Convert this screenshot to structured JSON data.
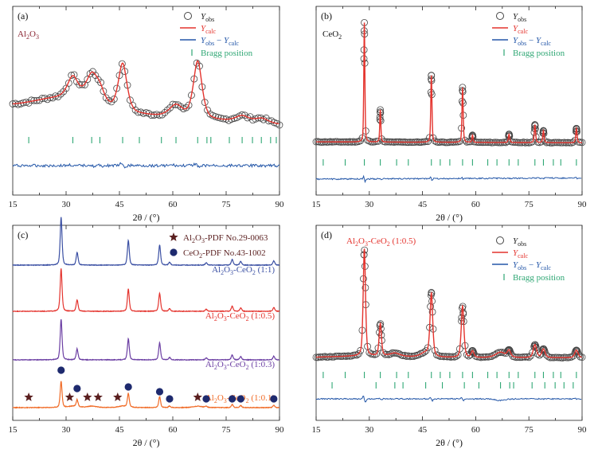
{
  "colors": {
    "obs": "#444444",
    "calc": "#e4332d",
    "diff": "#2457a8",
    "bragg": "#2fa774",
    "series_11": "#3a4fa3",
    "series_105": "#e4332d",
    "series_103": "#6b3ea3",
    "series_101": "#f06a25",
    "star": "#5a1f1f",
    "circle": "#1e2a6e"
  },
  "chart_data": [
    {
      "type": "line",
      "panel": "(a)",
      "sample_label": "Al2O3",
      "sample_label_color": "#8a2432",
      "xlabel": "2θ / (°)",
      "xlim": [
        15,
        90
      ],
      "xticks": [
        15,
        30,
        45,
        60,
        75,
        90
      ],
      "legend": [
        "Y_obs",
        "Y_calc",
        "Y_obs − Y_calc",
        "Bragg position"
      ],
      "legend_placement": "top-right",
      "peaks": [
        {
          "x": 31.9,
          "h": 0.18,
          "w": 1.6
        },
        {
          "x": 37.2,
          "h": 0.22,
          "w": 1.8
        },
        {
          "x": 39.5,
          "h": 0.1,
          "w": 1.5
        },
        {
          "x": 45.9,
          "h": 0.4,
          "w": 1.3
        },
        {
          "x": 60.9,
          "h": 0.1,
          "w": 2.0
        },
        {
          "x": 67.0,
          "h": 0.48,
          "w": 1.3
        },
        {
          "x": 79.5,
          "h": 0.05,
          "w": 2.0
        },
        {
          "x": 85.0,
          "h": 0.04,
          "w": 2.0
        }
      ],
      "bragg_positions": [
        19.5,
        31.9,
        37.2,
        39.5,
        45.9,
        50.6,
        56.8,
        60.9,
        67.0,
        69.6,
        70.7,
        75.9,
        79.5,
        82.4,
        84.9,
        87.5,
        89.1
      ]
    },
    {
      "type": "line",
      "panel": "(b)",
      "sample_label": "CeO2",
      "sample_label_color": "#111111",
      "xlabel": "2θ / (°)",
      "xlim": [
        15,
        90
      ],
      "xticks": [
        15,
        30,
        45,
        60,
        75,
        90
      ],
      "legend": [
        "Y_obs",
        "Y_calc",
        "Y_obs − Y_calc",
        "Bragg position"
      ],
      "legend_placement": "top-right",
      "peaks": [
        {
          "x": 28.6,
          "h": 1.0,
          "w": 0.16
        },
        {
          "x": 33.1,
          "h": 0.27,
          "w": 0.16
        },
        {
          "x": 47.5,
          "h": 0.56,
          "w": 0.18
        },
        {
          "x": 56.3,
          "h": 0.46,
          "w": 0.18
        },
        {
          "x": 59.1,
          "h": 0.06,
          "w": 0.18
        },
        {
          "x": 69.4,
          "h": 0.07,
          "w": 0.2
        },
        {
          "x": 76.7,
          "h": 0.15,
          "w": 0.2
        },
        {
          "x": 79.1,
          "h": 0.1,
          "w": 0.2
        },
        {
          "x": 88.4,
          "h": 0.12,
          "w": 0.2
        }
      ],
      "bragg_positions": [
        17.0,
        23.2,
        28.6,
        33.1,
        37.7,
        41.0,
        47.5,
        50.0,
        52.7,
        56.3,
        59.1,
        63.4,
        66.0,
        69.4,
        72.0,
        76.7,
        79.1,
        81.9,
        84.0,
        88.4
      ]
    },
    {
      "type": "line",
      "panel": "(c)",
      "xlabel": "2θ / (°)",
      "xlim": [
        15,
        90
      ],
      "xticks": [
        15,
        30,
        45,
        60,
        75,
        90
      ],
      "legend": [
        "Al2O3-PDF No.29-0063",
        "CeO2-PDF No.43-1002"
      ],
      "legend_text_color": "#5a1f1f",
      "legend_placement": "top-center",
      "ceo2_peaks": [
        28.6,
        33.1,
        47.5,
        56.3,
        59.1,
        69.4,
        76.7,
        79.1,
        88.4
      ],
      "al2o3_peaks": [
        19.5,
        31.9,
        37.2,
        39.5,
        45.9,
        67.0
      ],
      "star_markers": [
        19.5,
        31.0,
        36.0,
        39.0,
        44.5,
        67.0
      ],
      "circle_markers": [
        28.6,
        33.1,
        47.5,
        56.3,
        59.1,
        69.4,
        76.7,
        79.1,
        88.4
      ],
      "series": [
        {
          "name": "Al2O3-CeO2 (1:1)",
          "ratio": 1.0,
          "base": 0.2
        },
        {
          "name": "Al2O3-CeO2 (1:0.5)",
          "ratio": 0.9,
          "base": 0.44
        },
        {
          "name": "Al2O3-CeO2 (1:0.3)",
          "ratio": 0.85,
          "base": 0.68
        },
        {
          "name": "Al2O3-CeO2 (1:0.1)",
          "ratio": 0.55,
          "base": 0.92
        }
      ]
    },
    {
      "type": "line",
      "panel": "(d)",
      "sample_label": "Al2O3-CeO2 (1:0.5)",
      "sample_label_color": "#e4332d",
      "xlabel": "2θ / (°)",
      "xlim": [
        15,
        90
      ],
      "xticks": [
        15,
        30,
        45,
        60,
        75,
        90
      ],
      "legend": [
        "Y_obs",
        "Y_calc",
        "Y_obs − Y_calc",
        "Bragg position"
      ],
      "legend_placement": "top-right",
      "peaks": [
        {
          "x": 28.6,
          "h": 1.0,
          "w": 0.35
        },
        {
          "x": 33.1,
          "h": 0.3,
          "w": 0.35
        },
        {
          "x": 47.5,
          "h": 0.58,
          "w": 0.4
        },
        {
          "x": 56.3,
          "h": 0.48,
          "w": 0.4
        },
        {
          "x": 59.1,
          "h": 0.06,
          "w": 0.4
        },
        {
          "x": 69.4,
          "h": 0.06,
          "w": 0.5
        },
        {
          "x": 76.7,
          "h": 0.12,
          "w": 0.5
        },
        {
          "x": 79.1,
          "h": 0.08,
          "w": 0.5
        },
        {
          "x": 88.4,
          "h": 0.07,
          "w": 0.5
        },
        {
          "x": 37.2,
          "h": 0.03,
          "w": 1.5
        },
        {
          "x": 45.9,
          "h": 0.04,
          "w": 1.5
        },
        {
          "x": 67.0,
          "h": 0.05,
          "w": 1.5
        }
      ],
      "bragg_row1": [
        17.0,
        23.2,
        28.6,
        33.1,
        37.7,
        41.0,
        47.5,
        50.0,
        52.7,
        56.3,
        59.1,
        63.4,
        66.0,
        69.4,
        72.0,
        76.7,
        79.1,
        81.9,
        84.0,
        88.4
      ],
      "bragg_row2": [
        19.5,
        31.9,
        37.2,
        39.5,
        45.9,
        50.6,
        56.8,
        60.9,
        67.0,
        69.6,
        70.7,
        75.9,
        79.5,
        82.4,
        84.9,
        87.5
      ]
    }
  ]
}
